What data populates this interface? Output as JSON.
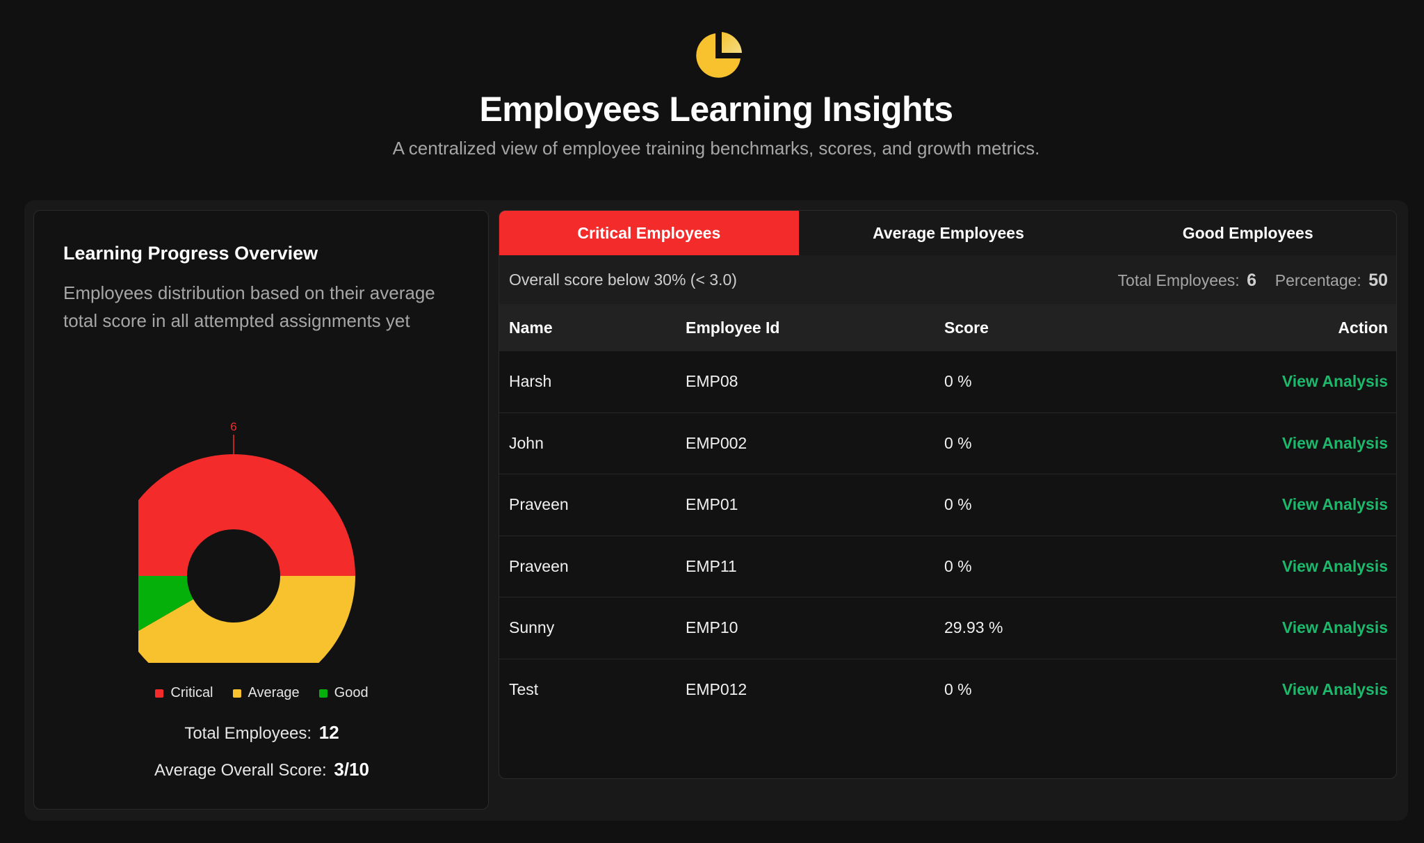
{
  "header": {
    "logo_icon": "pie-chart-icon",
    "title": "Employees Learning Insights",
    "subtitle": "A centralized view of employee training benchmarks, scores, and growth metrics."
  },
  "overview": {
    "title": "Learning Progress Overview",
    "description": "Employees distribution based on their average total score in all attempted assignments yet",
    "chart_data": {
      "type": "pie",
      "categories": [
        "Critical",
        "Average",
        "Good"
      ],
      "values": [
        6,
        5,
        1
      ],
      "colors": [
        "#f42b2b",
        "#f7c22e",
        "#06b00a"
      ],
      "donut": true,
      "legend": "bottom"
    },
    "legend": [
      {
        "label": "Critical",
        "color": "#f42b2b"
      },
      {
        "label": "Average",
        "color": "#f7c22e"
      },
      {
        "label": "Good",
        "color": "#06b00a"
      }
    ],
    "total_label": "Total Employees:",
    "total_value": "12",
    "avg_label": "Average Overall Score:",
    "avg_value": "3/10"
  },
  "tabs": [
    {
      "label": "Critical Employees",
      "active": true
    },
    {
      "label": "Average Employees",
      "active": false
    },
    {
      "label": "Good Employees",
      "active": false
    }
  ],
  "info": {
    "criteria": "Overall score below 30% (< 3.0)",
    "total_label": "Total Employees:",
    "total_value": "6",
    "percent_label": "Percentage:",
    "percent_value": "50"
  },
  "table": {
    "headers": {
      "name": "Name",
      "id": "Employee Id",
      "score": "Score",
      "action": "Action"
    },
    "rows": [
      {
        "name": "Harsh",
        "id": "EMP08",
        "score": "0 %",
        "action": "View Analysis"
      },
      {
        "name": "John",
        "id": "EMP002",
        "score": "0 %",
        "action": "View Analysis"
      },
      {
        "name": "Praveen",
        "id": "EMP01",
        "score": "0 %",
        "action": "View Analysis"
      },
      {
        "name": "Praveen",
        "id": "EMP11",
        "score": "0 %",
        "action": "View Analysis"
      },
      {
        "name": "Sunny",
        "id": "EMP10",
        "score": "29.93 %",
        "action": "View Analysis"
      },
      {
        "name": "Test",
        "id": "EMP012",
        "score": "0 %",
        "action": "View Analysis"
      }
    ]
  },
  "colors": {
    "accent_red": "#f42b2b",
    "link_green": "#1db86b",
    "logo_yellow": "#f7c22e"
  }
}
